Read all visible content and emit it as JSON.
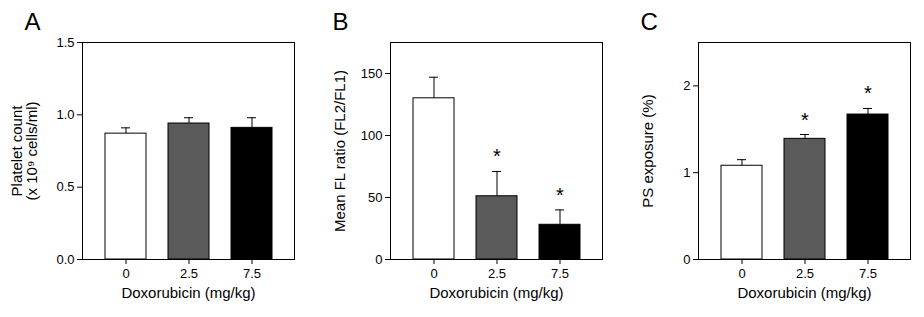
{
  "chart_data": [
    {
      "type": "bar",
      "title": "A",
      "categories": [
        "0",
        "2.5",
        "7.5"
      ],
      "values": [
        0.87,
        0.94,
        0.91
      ],
      "errors": [
        0.04,
        0.04,
        0.07
      ],
      "colors": [
        "#ffffff",
        "#5a5a5a",
        "#000000"
      ],
      "x_label": "Doxorubicin (mg/kg)",
      "y_label": "Platelet count\n(x 10⁹ cells/ml)",
      "ylim": [
        0,
        1.5
      ],
      "yticks": [
        {
          "value": 0,
          "label": "0.0"
        },
        {
          "value": 0.5,
          "label": "0.5"
        },
        {
          "value": 1,
          "label": "1.0"
        },
        {
          "value": 1.5,
          "label": "1.5"
        }
      ]
    },
    {
      "type": "bar",
      "title": "B",
      "categories": [
        "0",
        "2.5",
        "7.5"
      ],
      "values": [
        130,
        51,
        28
      ],
      "errors": [
        17,
        20,
        12
      ],
      "colors": [
        "#ffffff",
        "#5a5a5a",
        "#000000"
      ],
      "x_label": "Doxorubicin (mg/kg)",
      "y_label": "Mean FL ratio (FL2/FL1)",
      "ylim": [
        0,
        175
      ],
      "yticks": [
        0,
        50,
        100,
        150
      ],
      "annotations": [
        {
          "category": "2.5",
          "text": "*"
        },
        {
          "category": "7.5",
          "text": "*"
        }
      ]
    },
    {
      "type": "bar",
      "title": "C",
      "categories": [
        "0",
        "2.5",
        "7.5"
      ],
      "values": [
        1.08,
        1.39,
        1.67
      ],
      "errors": [
        0.07,
        0.05,
        0.07
      ],
      "colors": [
        "#ffffff",
        "#5a5a5a",
        "#000000"
      ],
      "x_label": "Doxorubicin (mg/kg)",
      "y_label": "PS exposure (%)",
      "ylim": [
        0,
        2.5
      ],
      "yticks": [
        0,
        1,
        2
      ],
      "annotations": [
        {
          "category": "2.5",
          "text": "*"
        },
        {
          "category": "7.5",
          "text": "*"
        }
      ]
    }
  ]
}
